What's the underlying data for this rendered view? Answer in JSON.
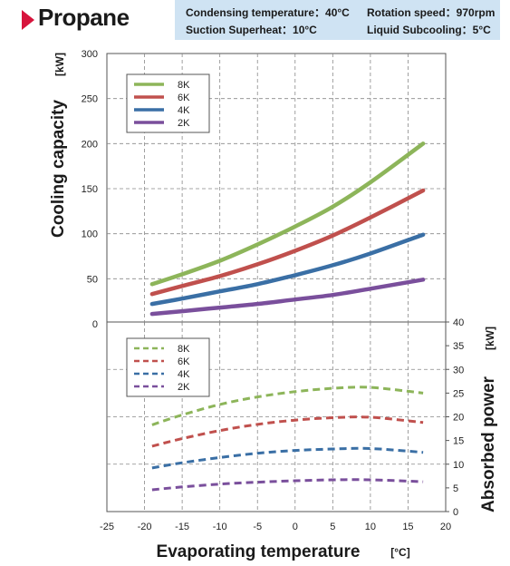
{
  "header": {
    "title": "Propane",
    "conditions": {
      "condensing_temperature": "Condensing temperature：40°C",
      "rotation_speed": "Rotation speed：970rpm",
      "suction_superheat": "Suction Superheat：10°C",
      "liquid_subcooling": "Liquid Subcooling：5°C"
    }
  },
  "colors": {
    "accent": "#d7143c",
    "condition_box": "#cfe3f3",
    "series_8K": "#8db55a",
    "series_6K": "#c0504d",
    "series_4K": "#3a6fa5",
    "series_2K": "#7a4f9c"
  },
  "chart_data": [
    {
      "type": "line",
      "position": "top",
      "ylabel": "Cooling capacity",
      "ylabel_unit": "[kW]",
      "ylim": [
        0,
        300
      ],
      "yticks": [
        0,
        50,
        100,
        150,
        200,
        250,
        300
      ],
      "xlim": [
        -25,
        20
      ],
      "grid": true,
      "legend": "top-left",
      "line_style": "solid",
      "series": [
        {
          "name": "8K",
          "x": [
            -19,
            -15,
            -10,
            -5,
            0,
            5,
            10,
            17
          ],
          "y": [
            44,
            55,
            70,
            88,
            108,
            130,
            157,
            200
          ]
        },
        {
          "name": "6K",
          "x": [
            -19,
            -15,
            -10,
            -5,
            0,
            5,
            10,
            17
          ],
          "y": [
            33,
            42,
            53,
            66,
            81,
            98,
            118,
            148
          ]
        },
        {
          "name": "4K",
          "x": [
            -19,
            -15,
            -10,
            -5,
            0,
            5,
            10,
            17
          ],
          "y": [
            22,
            28,
            36,
            44,
            54,
            65,
            78,
            99
          ]
        },
        {
          "name": "2K",
          "x": [
            -19,
            -15,
            -10,
            -5,
            0,
            5,
            10,
            17
          ],
          "y": [
            11,
            14,
            18,
            22,
            27,
            32,
            39,
            49
          ]
        }
      ]
    },
    {
      "type": "line",
      "position": "bottom",
      "ylabel": "Absorbed power",
      "ylabel_unit": "[kW]",
      "ylim": [
        0,
        40
      ],
      "yticks": [
        0,
        5,
        10,
        15,
        20,
        25,
        30,
        35,
        40
      ],
      "xlabel": "Evaporating temperature",
      "xlabel_unit": "[°C]",
      "xlim": [
        -25,
        20
      ],
      "xticks": [
        -25,
        -20,
        -15,
        -10,
        -5,
        0,
        5,
        10,
        15,
        20
      ],
      "grid": true,
      "legend": "top-left",
      "line_style": "dashed",
      "series": [
        {
          "name": "8K",
          "x": [
            -19,
            -15,
            -10,
            -5,
            0,
            5,
            10,
            17
          ],
          "y": [
            18.3,
            20.4,
            22.6,
            24.2,
            25.3,
            26.0,
            26.2,
            25.0
          ]
        },
        {
          "name": "6K",
          "x": [
            -19,
            -15,
            -10,
            -5,
            0,
            5,
            10,
            17
          ],
          "y": [
            13.8,
            15.4,
            17.1,
            18.4,
            19.3,
            19.8,
            19.9,
            18.8
          ]
        },
        {
          "name": "4K",
          "x": [
            -19,
            -15,
            -10,
            -5,
            0,
            5,
            10,
            17
          ],
          "y": [
            9.2,
            10.3,
            11.4,
            12.3,
            12.9,
            13.2,
            13.3,
            12.5
          ]
        },
        {
          "name": "2K",
          "x": [
            -19,
            -15,
            -10,
            -5,
            0,
            5,
            10,
            17
          ],
          "y": [
            4.6,
            5.2,
            5.8,
            6.2,
            6.5,
            6.7,
            6.7,
            6.3
          ]
        }
      ]
    }
  ]
}
